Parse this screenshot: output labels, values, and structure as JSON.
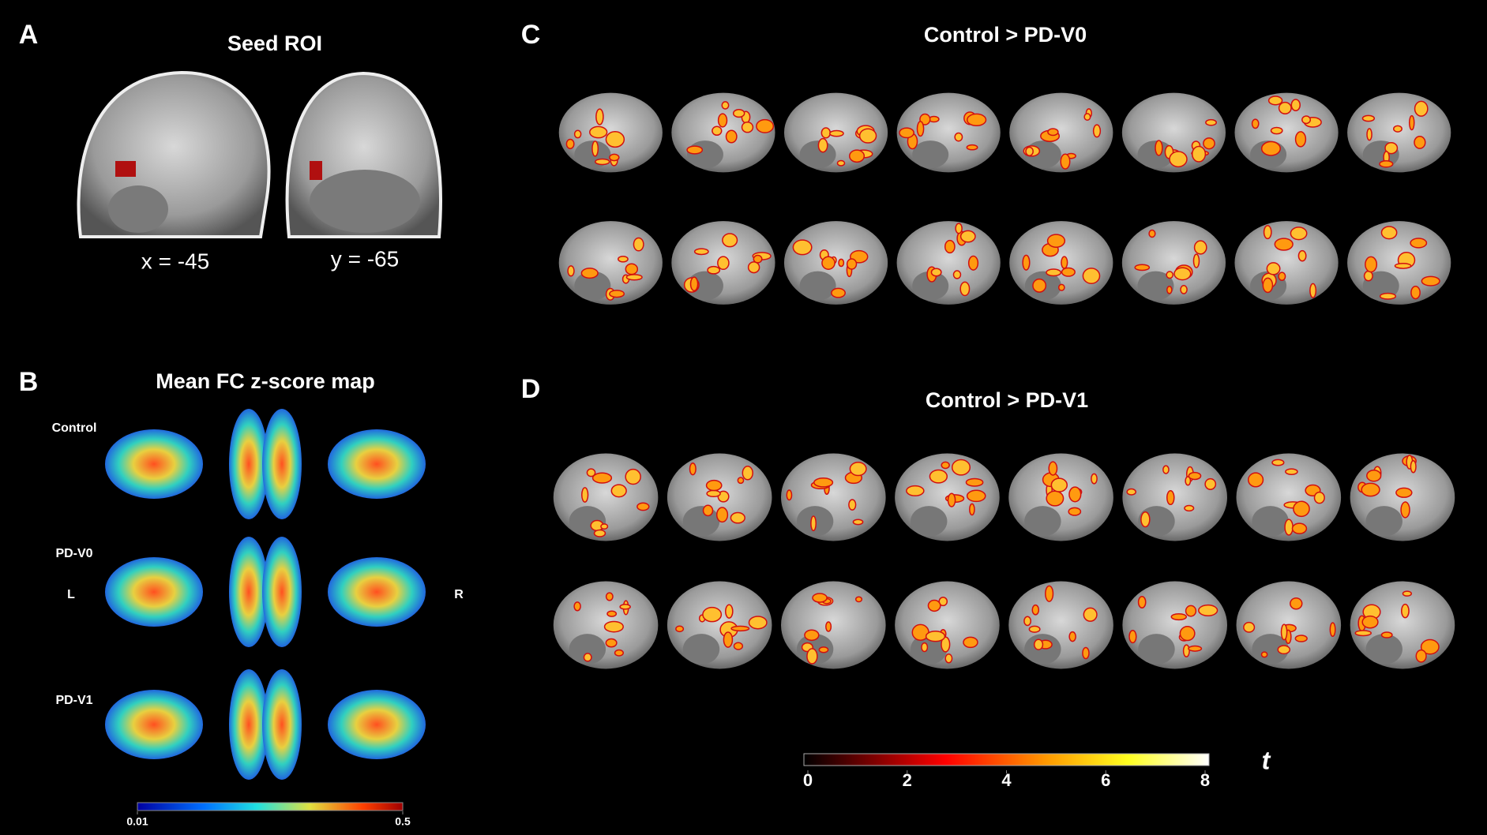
{
  "panel_a": {
    "label": "A",
    "title": "Seed ROI",
    "coords": [
      "x = -45",
      "y = -65"
    ]
  },
  "panel_b": {
    "label": "B",
    "title": "Mean FC z-score map",
    "rows": [
      "Control",
      "PD-V0",
      "PD-V1"
    ],
    "left": "L",
    "right": "R",
    "colorbar": {
      "lim": [
        0.01,
        0.5
      ],
      "ticks": [
        0.01,
        0.5
      ]
    }
  },
  "panel_c": {
    "label": "C",
    "title": "Control > PD-V0"
  },
  "panel_d": {
    "label": "D",
    "title": "Control > PD-V1"
  },
  "t_colorbar": {
    "lim": [
      0,
      8
    ],
    "ticks": [
      0,
      2,
      4,
      6,
      8
    ],
    "symbol": "t"
  }
}
